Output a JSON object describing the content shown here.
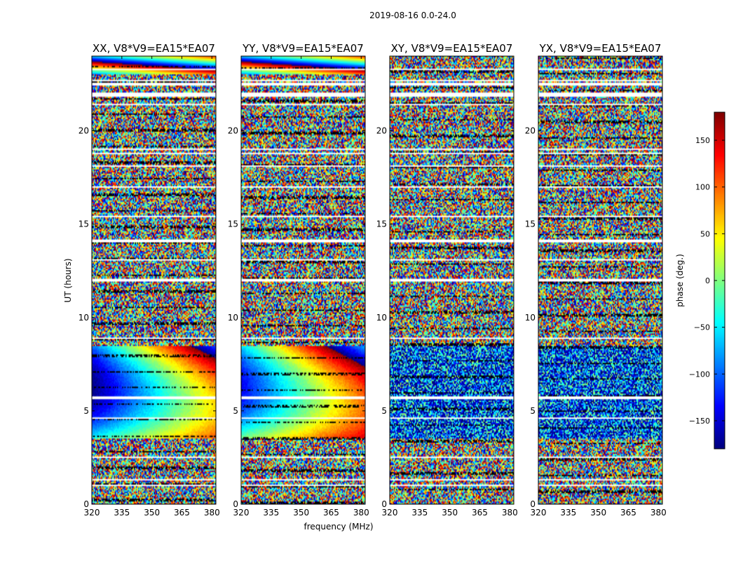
{
  "figure_title": "2019-08-16 0.0-24.0",
  "chart_data": {
    "type": "heatmap",
    "title": "2019-08-16 0.0-24.0",
    "xlabel": "frequency (MHz)",
    "ylabel": "UT (hours)",
    "x_range": [
      320,
      382
    ],
    "y_range": [
      0,
      24
    ],
    "x_ticks": [
      320,
      335,
      350,
      365,
      380
    ],
    "y_ticks": [
      0,
      5,
      10,
      15,
      20
    ],
    "colorbar": {
      "label": "phase (deg.)",
      "range": [
        -180,
        180
      ],
      "ticks": [
        150,
        100,
        50,
        0,
        -50,
        -100,
        -150
      ],
      "tick_labels": [
        "150",
        "100",
        "50",
        "0",
        "−50",
        "−100",
        "−150"
      ],
      "colormap": "jet"
    },
    "panels": [
      {
        "title": "XX, V8*V9=EA15*EA07",
        "polarization": "XX",
        "coherent_band_hours": [
          3.5,
          8.5
        ]
      },
      {
        "title": "YY, V8*V9=EA15*EA07",
        "polarization": "YY",
        "coherent_band_hours": [
          3.5,
          8.5
        ]
      },
      {
        "title": "XY, V8*V9=EA15*EA07",
        "polarization": "XY",
        "coherent_band_hours": []
      },
      {
        "title": "YX, V8*V9=EA15*EA07",
        "polarization": "YX",
        "coherent_band_hours": []
      }
    ],
    "flagged_rows_hours": [
      1.0,
      1.3,
      2.5,
      4.6,
      5.7,
      8.9,
      12.0,
      13.1,
      14.1,
      15.4,
      17.0,
      18.1,
      18.8,
      19.0,
      21.4,
      21.9,
      22.0,
      22.5,
      22.7,
      23.3
    ]
  }
}
